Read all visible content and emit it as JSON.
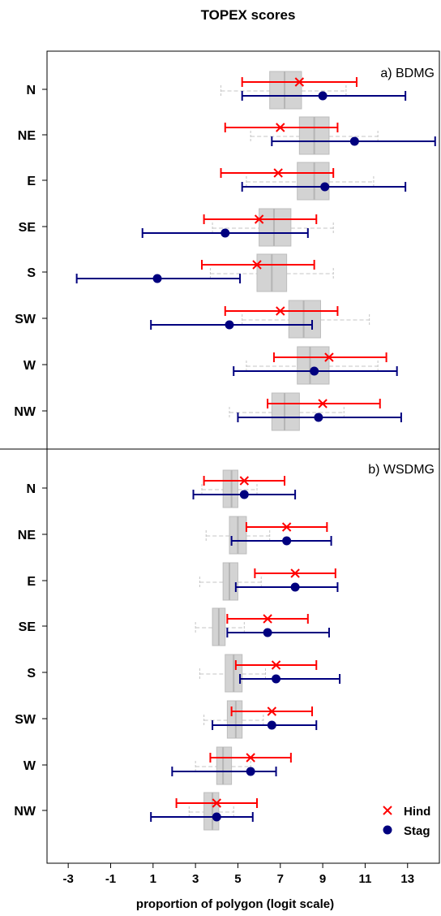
{
  "title": "TOPEX scores",
  "xlabel": "proportion of polygon (logit scale)",
  "colors": {
    "hind": "#ff0000",
    "stag": "#00007f",
    "box": "#d3d3d3",
    "box_edge": "#bdbdbd",
    "whisker": "#c4c4c4"
  },
  "chart_data": [
    {
      "type": "boxplot-with-interval-overlay",
      "panel_label": "a) BDMG",
      "categories": [
        "N",
        "NE",
        "E",
        "SE",
        "S",
        "SW",
        "W",
        "NW"
      ],
      "xlim": [
        -4,
        14.5
      ],
      "xticks": [
        -3,
        -1,
        1,
        3,
        5,
        7,
        9,
        11,
        13
      ],
      "grid": false,
      "boxes": [
        {
          "whisker_low": 4.2,
          "q1": 6.5,
          "median": 7.2,
          "q3": 8.0,
          "whisker_high": 10.1
        },
        {
          "whisker_low": 5.6,
          "q1": 7.9,
          "median": 8.6,
          "q3": 9.3,
          "whisker_high": 11.6
        },
        {
          "whisker_low": 5.4,
          "q1": 7.8,
          "median": 8.6,
          "q3": 9.3,
          "whisker_high": 11.4
        },
        {
          "whisker_low": 3.8,
          "q1": 6.0,
          "median": 6.7,
          "q3": 7.5,
          "whisker_high": 9.5
        },
        {
          "whisker_low": 3.7,
          "q1": 5.9,
          "median": 6.6,
          "q3": 7.3,
          "whisker_high": 9.5
        },
        {
          "whisker_low": 5.2,
          "q1": 7.4,
          "median": 8.1,
          "q3": 8.9,
          "whisker_high": 11.2
        },
        {
          "whisker_low": 5.4,
          "q1": 7.8,
          "median": 8.4,
          "q3": 9.3,
          "whisker_high": 11.6
        },
        {
          "whisker_low": 4.6,
          "q1": 6.6,
          "median": 7.2,
          "q3": 7.9,
          "whisker_high": 10.0
        }
      ],
      "series": [
        {
          "name": "Hind",
          "marker": "x",
          "estimates": [
            7.9,
            7.0,
            6.9,
            6.0,
            5.9,
            7.0,
            9.3,
            9.0
          ],
          "lower": [
            5.2,
            4.4,
            4.2,
            3.4,
            3.3,
            4.4,
            6.7,
            6.4
          ],
          "upper": [
            10.6,
            9.7,
            9.5,
            8.7,
            8.6,
            9.7,
            12.0,
            11.7
          ]
        },
        {
          "name": "Stag",
          "marker": "circle",
          "estimates": [
            9.0,
            10.5,
            9.1,
            4.4,
            1.2,
            4.6,
            8.6,
            8.8
          ],
          "lower": [
            5.2,
            6.6,
            5.2,
            0.5,
            -2.6,
            0.9,
            4.8,
            5.0
          ],
          "upper": [
            12.9,
            14.3,
            12.9,
            8.3,
            5.1,
            8.5,
            12.5,
            12.7
          ]
        }
      ]
    },
    {
      "type": "boxplot-with-interval-overlay",
      "panel_label": "b) WSDMG",
      "categories": [
        "N",
        "NE",
        "E",
        "SE",
        "S",
        "SW",
        "W",
        "NW"
      ],
      "xlim": [
        -4,
        14.5
      ],
      "xticks": [
        -3,
        -1,
        1,
        3,
        5,
        7,
        9,
        11,
        13
      ],
      "grid": false,
      "boxes": [
        {
          "whisker_low": 3.3,
          "q1": 4.3,
          "median": 4.7,
          "q3": 5.0,
          "whisker_high": 5.9
        },
        {
          "whisker_low": 3.5,
          "q1": 4.6,
          "median": 5.0,
          "q3": 5.4,
          "whisker_high": 6.5
        },
        {
          "whisker_low": 3.2,
          "q1": 4.3,
          "median": 4.6,
          "q3": 5.0,
          "whisker_high": 6.1
        },
        {
          "whisker_low": 3.0,
          "q1": 3.8,
          "median": 4.1,
          "q3": 4.4,
          "whisker_high": 5.3
        },
        {
          "whisker_low": 3.2,
          "q1": 4.4,
          "median": 4.8,
          "q3": 5.2,
          "whisker_high": 6.3
        },
        {
          "whisker_low": 3.4,
          "q1": 4.5,
          "median": 4.9,
          "q3": 5.2,
          "whisker_high": 6.2
        },
        {
          "whisker_low": 3.0,
          "q1": 4.0,
          "median": 4.3,
          "q3": 4.7,
          "whisker_high": 5.6
        },
        {
          "whisker_low": 2.7,
          "q1": 3.4,
          "median": 3.8,
          "q3": 4.1,
          "whisker_high": 4.8
        }
      ],
      "series": [
        {
          "name": "Hind",
          "marker": "x",
          "estimates": [
            5.3,
            7.3,
            7.7,
            6.4,
            6.8,
            6.6,
            5.6,
            4.0
          ],
          "lower": [
            3.4,
            5.4,
            5.8,
            4.5,
            4.9,
            4.7,
            3.7,
            2.1
          ],
          "upper": [
            7.2,
            9.2,
            9.6,
            8.3,
            8.7,
            8.5,
            7.5,
            5.9
          ]
        },
        {
          "name": "Stag",
          "marker": "circle",
          "estimates": [
            5.3,
            7.3,
            7.7,
            6.4,
            6.8,
            6.6,
            5.6,
            4.0
          ],
          "lower": [
            2.9,
            4.7,
            4.9,
            4.5,
            5.1,
            3.8,
            1.9,
            0.9
          ],
          "upper": [
            7.7,
            9.4,
            9.7,
            9.3,
            9.8,
            8.7,
            6.8,
            5.7
          ]
        }
      ]
    }
  ]
}
